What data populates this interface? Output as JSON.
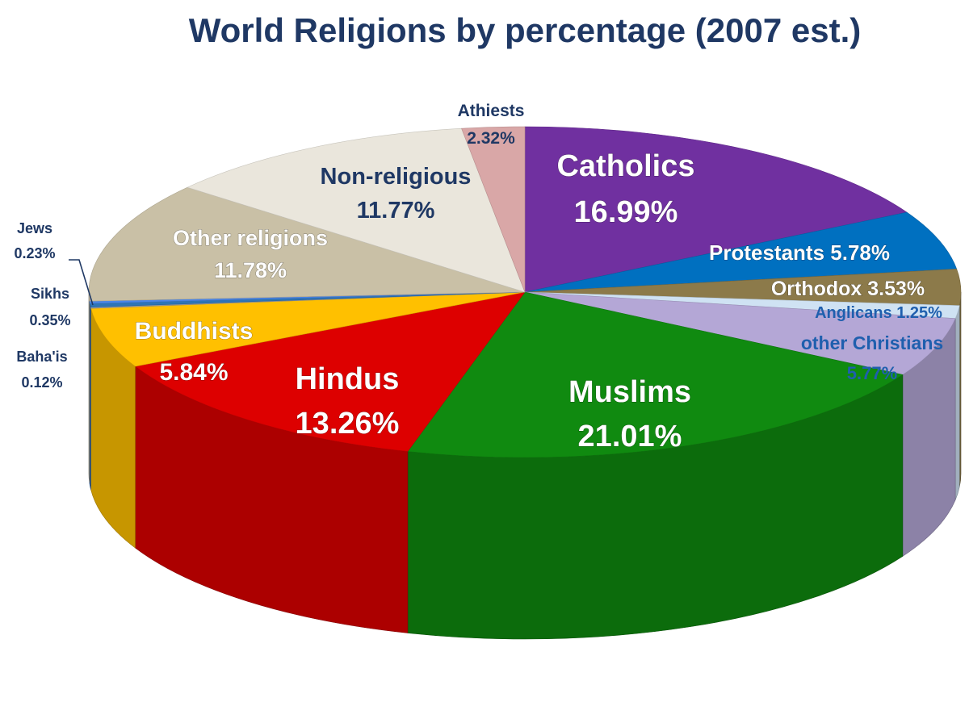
{
  "chart_data": {
    "type": "pie",
    "title": "World Religions by percentage (2007 est.)",
    "slices": [
      {
        "label": "Catholics",
        "value_text": "16.99%",
        "value": 16.99,
        "color": "#7030a0"
      },
      {
        "label": "Protestants",
        "value_text": "5.78%",
        "value": 5.78,
        "color": "#0070c0"
      },
      {
        "label": "Orthodox",
        "value_text": "3.53%",
        "value": 3.53,
        "color": "#8c7a4a"
      },
      {
        "label": "Anglicans",
        "value_text": "1.25%",
        "value": 1.25,
        "color": "#cfe2f3"
      },
      {
        "label": "other Christians",
        "value_text": "5.77%",
        "value": 5.77,
        "color": "#b4a7d6"
      },
      {
        "label": "Muslims",
        "value_text": "21.01%",
        "value": 21.01,
        "color": "#108a10"
      },
      {
        "label": "Hindus",
        "value_text": "13.26%",
        "value": 13.26,
        "color": "#dd0000"
      },
      {
        "label": "Buddhists",
        "value_text": "5.84%",
        "value": 5.84,
        "color": "#ffc000"
      },
      {
        "label": "Baha'is",
        "value_text": "0.12%",
        "value": 0.12,
        "color": "#a0a0a0"
      },
      {
        "label": "Sikhs",
        "value_text": "0.35%",
        "value": 0.35,
        "color": "#2e75b6"
      },
      {
        "label": "Jews",
        "value_text": "0.23%",
        "value": 0.23,
        "color": "#4a86e8"
      },
      {
        "label": "Other religions",
        "value_text": "11.78%",
        "value": 11.78,
        "color": "#c9c0a6"
      },
      {
        "label": "Non-religious",
        "value_text": "11.77%",
        "value": 11.77,
        "color": "#eae6dc"
      },
      {
        "label": "Athiests",
        "value_text": "2.32%",
        "value": 2.32,
        "color": "#d9a7a7"
      }
    ]
  }
}
